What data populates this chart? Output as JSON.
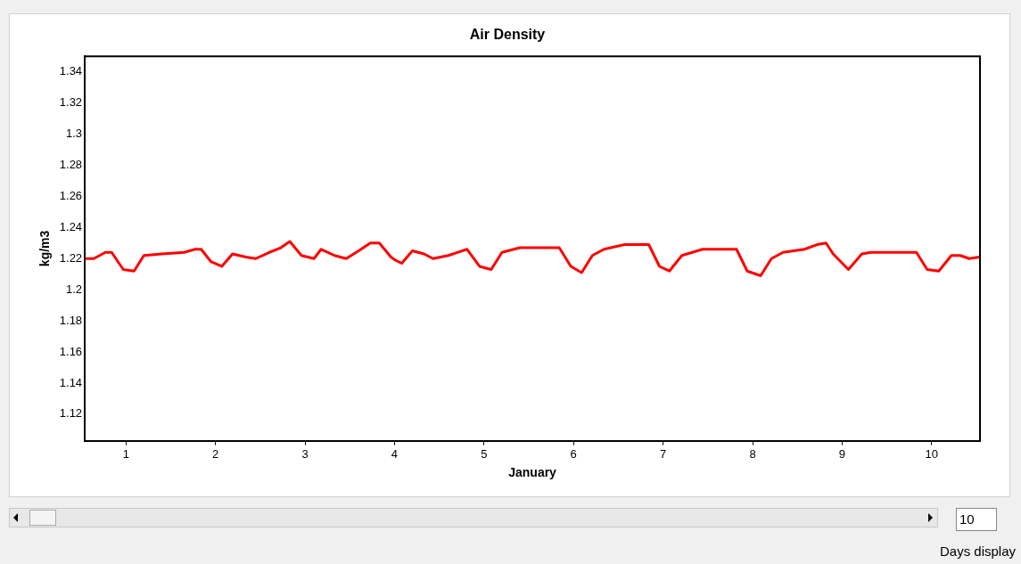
{
  "chart_data": {
    "type": "line",
    "title": "Air Density",
    "xlabel": "January",
    "ylabel": "kg/m3",
    "x": [
      0.55,
      0.64,
      0.77,
      0.84,
      0.97,
      1.09,
      1.2,
      1.4,
      1.65,
      1.77,
      1.84,
      1.95,
      2.07,
      2.19,
      2.34,
      2.45,
      2.6,
      2.73,
      2.83,
      2.96,
      3.1,
      3.18,
      3.33,
      3.46,
      3.6,
      3.73,
      3.83,
      3.96,
      4.01,
      4.08,
      4.2,
      4.33,
      4.43,
      4.6,
      4.81,
      4.95,
      5.08,
      5.2,
      5.4,
      5.57,
      5.84,
      5.97,
      6.09,
      6.21,
      6.34,
      6.57,
      6.84,
      6.96,
      7.07,
      7.21,
      7.44,
      7.51,
      7.82,
      7.94,
      8.09,
      8.21,
      8.34,
      8.58,
      8.72,
      8.82,
      8.9,
      9.07,
      9.22,
      9.32,
      9.83,
      9.95,
      10.08,
      10.22,
      10.32,
      10.42,
      10.53
    ],
    "series": [
      {
        "color": "#ff0000",
        "values": [
          1.22,
          1.22,
          1.224,
          1.224,
          1.213,
          1.212,
          1.222,
          1.223,
          1.224,
          1.226,
          1.226,
          1.218,
          1.215,
          1.223,
          1.221,
          1.22,
          1.224,
          1.227,
          1.231,
          1.222,
          1.22,
          1.226,
          1.222,
          1.22,
          1.225,
          1.23,
          1.23,
          1.221,
          1.219,
          1.217,
          1.225,
          1.223,
          1.22,
          1.222,
          1.226,
          1.215,
          1.213,
          1.224,
          1.227,
          1.227,
          1.227,
          1.215,
          1.211,
          1.222,
          1.226,
          1.229,
          1.229,
          1.215,
          1.212,
          1.222,
          1.226,
          1.226,
          1.226,
          1.212,
          1.209,
          1.22,
          1.224,
          1.226,
          1.229,
          1.23,
          1.223,
          1.213,
          1.223,
          1.224,
          1.224,
          1.213,
          1.212,
          1.222,
          1.222,
          1.22,
          1.221
        ]
      }
    ],
    "xlim": [
      0.54,
      10.54
    ],
    "xticks": [
      1,
      2,
      3,
      4,
      5,
      6,
      7,
      8,
      9,
      10
    ],
    "ylim": [
      1.103,
      1.35
    ],
    "yticks": [
      1.12,
      1.14,
      1.16,
      1.18,
      1.2,
      1.22,
      1.24,
      1.26,
      1.28,
      1.3,
      1.32,
      1.34
    ],
    "grid": false,
    "legend": false,
    "marker": "none",
    "line_style": "solid",
    "annotations": [
      "10",
      "Days display"
    ]
  }
}
